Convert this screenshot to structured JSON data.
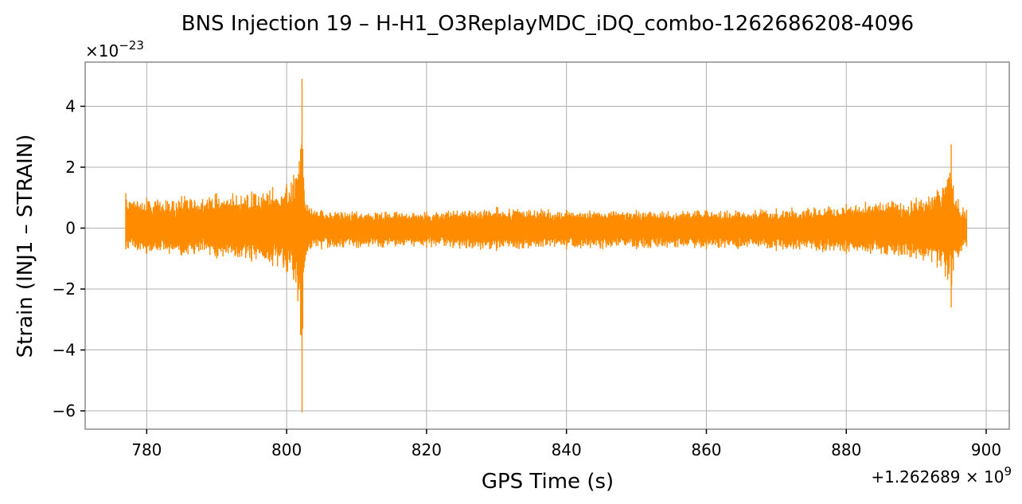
{
  "chart_data": {
    "type": "line",
    "title": "BNS Injection 19 – H-H1_O3ReplayMDC_iDQ_combo-1262686208-4096",
    "xlabel": "GPS Time (s)",
    "ylabel": "Strain (INJ1 – STRAIN)",
    "x_offset_label": "+1.262689 × 10",
    "x_offset_exponent": "9",
    "y_scale_label": "×10",
    "y_scale_exponent": "−23",
    "xlim": [
      771.2,
      903.3
    ],
    "ylim": [
      -6.6,
      5.45
    ],
    "x_ticks": [
      780,
      800,
      820,
      840,
      860,
      880,
      900
    ],
    "x_tick_labels": [
      "780",
      "800",
      "820",
      "840",
      "860",
      "880",
      "900"
    ],
    "y_ticks": [
      -6,
      -4,
      -2,
      0,
      2,
      4
    ],
    "y_tick_labels": [
      "−6",
      "−4",
      "−2",
      "0",
      "2",
      "4"
    ],
    "grid": true,
    "color": "#ff8c00",
    "series": [
      {
        "x": [
          777.0,
          780.0,
          785.0,
          790.0,
          795.0,
          798.0,
          800.0,
          801.0,
          802.0,
          802.2,
          802.3,
          802.5,
          803.0,
          805.0,
          810.0,
          820.0,
          830.0,
          840.0,
          850.0,
          860.0,
          870.0,
          880.0,
          890.0,
          893.0,
          894.5,
          895.0,
          895.3,
          896.0,
          897.2
        ],
        "upper": [
          1.15,
          1.0,
          1.05,
          1.15,
          1.2,
          1.35,
          1.45,
          1.75,
          2.6,
          4.9,
          2.6,
          1.25,
          0.75,
          0.6,
          0.55,
          0.55,
          0.7,
          0.6,
          0.6,
          0.6,
          0.65,
          0.8,
          1.0,
          1.25,
          1.6,
          2.75,
          1.4,
          0.95,
          0.6
        ],
        "lower": [
          -0.7,
          -0.85,
          -0.9,
          -1.0,
          -1.1,
          -1.25,
          -1.45,
          -1.7,
          -3.5,
          -6.05,
          -3.3,
          -1.3,
          -0.75,
          -0.7,
          -0.65,
          -0.65,
          -0.75,
          -0.7,
          -0.7,
          -0.7,
          -0.75,
          -0.85,
          -1.0,
          -1.3,
          -1.7,
          -2.6,
          -1.4,
          -0.95,
          -0.6
        ]
      }
    ]
  }
}
